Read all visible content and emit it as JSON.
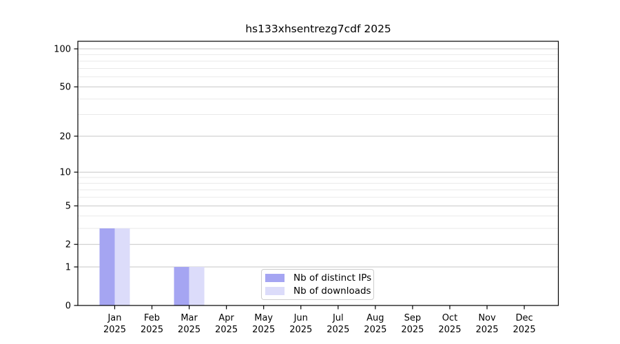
{
  "chart_data": {
    "type": "bar",
    "title": "hs133xhsentrezg7cdf 2025",
    "categories": [
      "Jan",
      "Feb",
      "Mar",
      "Apr",
      "May",
      "Jun",
      "Jul",
      "Aug",
      "Sep",
      "Oct",
      "Nov",
      "Dec"
    ],
    "year_label": "2025",
    "series": [
      {
        "name": "Nb of distinct IPs",
        "color": "#a5a5f2",
        "values": [
          3,
          0,
          1,
          0,
          0,
          0,
          0,
          0,
          0,
          0,
          0,
          0
        ]
      },
      {
        "name": "Nb of downloads",
        "color": "#dcdcfa",
        "values": [
          3,
          0,
          1,
          0,
          0,
          0,
          0,
          0,
          0,
          0,
          0,
          0
        ]
      }
    ],
    "y_axis": {
      "scale": "log1p",
      "ticks": [
        0,
        1,
        2,
        5,
        10,
        20,
        50,
        100
      ],
      "minor_gridlines": [
        3,
        4,
        6,
        7,
        8,
        9,
        30,
        40,
        60,
        70,
        80,
        90
      ],
      "ylim": [
        0,
        115
      ]
    },
    "xlabel": "",
    "ylabel": "",
    "grid": true,
    "legend_position": "bottom-center",
    "colors": {
      "major_grid": "#c6c6c6",
      "minor_grid": "#e9e9e9",
      "frame": "#000000",
      "background": "#ffffff"
    }
  }
}
